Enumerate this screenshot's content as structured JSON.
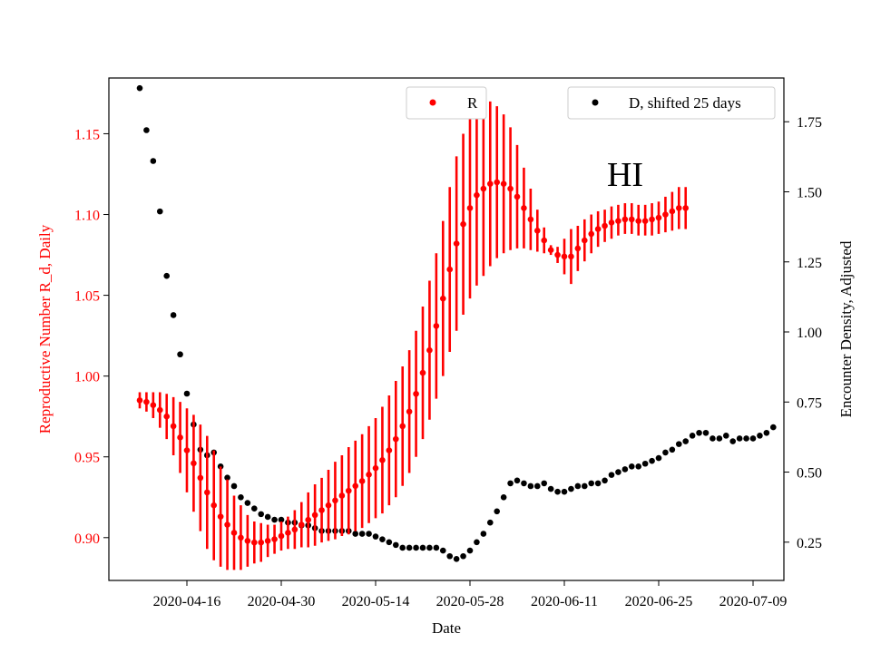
{
  "chart_data": {
    "type": "scatter",
    "annotation": "HI",
    "xlabel": "Date",
    "ylabel_left": "Reproductive Number R_d, Daily",
    "ylabel_right": "Encounter Density, Adjusted",
    "x_start": "2020-04-09",
    "xticks": [
      "2020-04-16",
      "2020-04-30",
      "2020-05-14",
      "2020-05-28",
      "2020-06-11",
      "2020-06-25",
      "2020-07-09"
    ],
    "ylim_left": [
      0.8735,
      1.1845
    ],
    "ylim_right": [
      0.1134,
      1.9061
    ],
    "yticks_left": [
      "0.90",
      "0.95",
      "1.00",
      "1.05",
      "1.10",
      "1.15"
    ],
    "yticks_right": [
      "0.25",
      "0.50",
      "0.75",
      "1.00",
      "1.25",
      "1.50",
      "1.75"
    ],
    "grid": false,
    "colors": {
      "R": "#ff0000",
      "D": "#000000",
      "left_axis_text": "#ff0000"
    },
    "series": [
      {
        "name": "R",
        "axis": "left",
        "color": "#ff0000",
        "legend_label": "R",
        "legend_position": "upper-center",
        "values": [
          0.985,
          0.984,
          0.982,
          0.979,
          0.975,
          0.969,
          0.962,
          0.954,
          0.946,
          0.937,
          0.928,
          0.92,
          0.913,
          0.908,
          0.903,
          0.9,
          0.898,
          0.897,
          0.897,
          0.898,
          0.899,
          0.901,
          0.903,
          0.905,
          0.908,
          0.911,
          0.914,
          0.917,
          0.92,
          0.923,
          0.926,
          0.929,
          0.932,
          0.935,
          0.939,
          0.943,
          0.948,
          0.954,
          0.961,
          0.969,
          0.978,
          0.989,
          1.002,
          1.016,
          1.031,
          1.048,
          1.066,
          1.082,
          1.094,
          1.104,
          1.112,
          1.116,
          1.119,
          1.12,
          1.119,
          1.116,
          1.111,
          1.104,
          1.097,
          1.09,
          1.084,
          1.078,
          1.075,
          1.074,
          1.074,
          1.079,
          1.084,
          1.088,
          1.091,
          1.093,
          1.095,
          1.096,
          1.097,
          1.097,
          1.096,
          1.096,
          1.097,
          1.098,
          1.1,
          1.102,
          1.104,
          1.104
        ],
        "err_low": [
          0.98,
          0.978,
          0.974,
          0.968,
          0.961,
          0.951,
          0.94,
          0.928,
          0.916,
          0.904,
          0.893,
          0.886,
          0.882,
          0.88,
          0.88,
          0.88,
          0.882,
          0.884,
          0.885,
          0.888,
          0.89,
          0.892,
          0.893,
          0.893,
          0.894,
          0.894,
          0.895,
          0.897,
          0.898,
          0.899,
          0.901,
          0.902,
          0.904,
          0.906,
          0.909,
          0.912,
          0.915,
          0.92,
          0.925,
          0.932,
          0.94,
          0.95,
          0.961,
          0.973,
          0.986,
          1.0,
          1.015,
          1.028,
          1.038,
          1.048,
          1.056,
          1.062,
          1.068,
          1.073,
          1.076,
          1.078,
          1.079,
          1.079,
          1.078,
          1.077,
          1.076,
          1.075,
          1.07,
          1.063,
          1.057,
          1.065,
          1.071,
          1.076,
          1.08,
          1.083,
          1.085,
          1.087,
          1.088,
          1.088,
          1.087,
          1.087,
          1.087,
          1.088,
          1.089,
          1.09,
          1.091,
          1.091
        ],
        "err_high": [
          0.99,
          0.99,
          0.99,
          0.99,
          0.989,
          0.987,
          0.984,
          0.98,
          0.976,
          0.97,
          0.963,
          0.954,
          0.944,
          0.936,
          0.926,
          0.92,
          0.914,
          0.91,
          0.909,
          0.908,
          0.908,
          0.91,
          0.913,
          0.917,
          0.922,
          0.928,
          0.933,
          0.937,
          0.942,
          0.947,
          0.951,
          0.956,
          0.96,
          0.964,
          0.969,
          0.974,
          0.981,
          0.988,
          0.997,
          1.006,
          1.016,
          1.028,
          1.043,
          1.059,
          1.076,
          1.096,
          1.117,
          1.136,
          1.15,
          1.16,
          1.168,
          1.17,
          1.17,
          1.167,
          1.162,
          1.154,
          1.143,
          1.129,
          1.116,
          1.103,
          1.092,
          1.081,
          1.08,
          1.085,
          1.091,
          1.093,
          1.097,
          1.1,
          1.102,
          1.103,
          1.105,
          1.106,
          1.107,
          1.107,
          1.106,
          1.106,
          1.107,
          1.108,
          1.111,
          1.114,
          1.117,
          1.117
        ]
      },
      {
        "name": "D, shifted 25 days",
        "axis": "right",
        "color": "#000000",
        "legend_label": "D, shifted 25 days",
        "legend_position": "upper-right",
        "values": [
          1.87,
          1.72,
          1.61,
          1.43,
          1.2,
          1.06,
          0.92,
          0.78,
          0.67,
          0.58,
          0.56,
          0.57,
          0.52,
          0.48,
          0.45,
          0.41,
          0.39,
          0.37,
          0.35,
          0.34,
          0.33,
          0.33,
          0.32,
          0.32,
          0.31,
          0.31,
          0.3,
          0.29,
          0.29,
          0.29,
          0.29,
          0.29,
          0.28,
          0.28,
          0.28,
          0.27,
          0.26,
          0.25,
          0.24,
          0.23,
          0.23,
          0.23,
          0.23,
          0.23,
          0.23,
          0.22,
          0.2,
          0.19,
          0.2,
          0.22,
          0.25,
          0.28,
          0.32,
          0.36,
          0.41,
          0.46,
          0.47,
          0.46,
          0.45,
          0.45,
          0.46,
          0.44,
          0.43,
          0.43,
          0.44,
          0.45,
          0.45,
          0.46,
          0.46,
          0.47,
          0.49,
          0.5,
          0.51,
          0.52,
          0.52,
          0.53,
          0.54,
          0.55,
          0.57,
          0.58,
          0.6,
          0.61,
          0.63,
          0.64,
          0.64,
          0.62,
          0.62,
          0.63,
          0.61,
          0.62,
          0.62,
          0.62,
          0.63,
          0.64,
          0.66
        ]
      }
    ]
  }
}
